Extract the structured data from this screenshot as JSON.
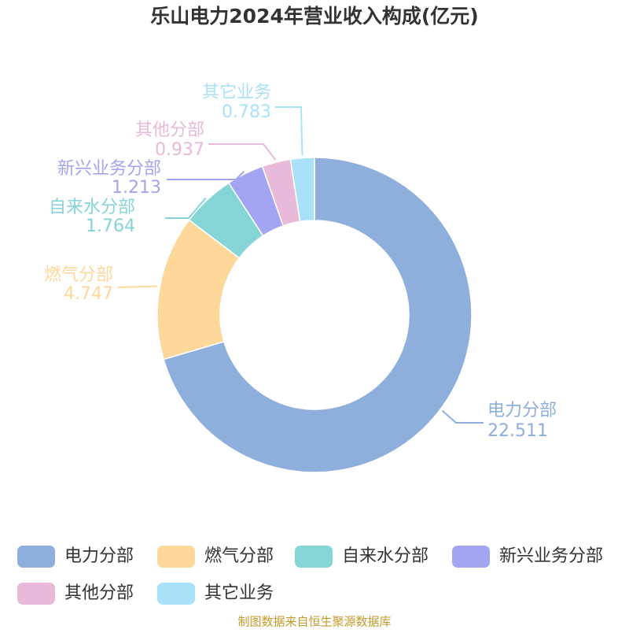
{
  "chart_data": {
    "type": "donut",
    "title": "乐山电力2024年营业收入构成(亿元)",
    "categories": [
      "电力分部",
      "燃气分部",
      "自来水分部",
      "新兴业务分部",
      "其他分部",
      "其它业务"
    ],
    "values": [
      22.511,
      4.747,
      1.764,
      1.213,
      0.937,
      0.783
    ],
    "colors": [
      "#8eaedb",
      "#fdd89a",
      "#86d5d6",
      "#a3a4f2",
      "#e8b9d9",
      "#a9e2f8"
    ],
    "source": "制图数据来自恒生聚源数据库"
  }
}
